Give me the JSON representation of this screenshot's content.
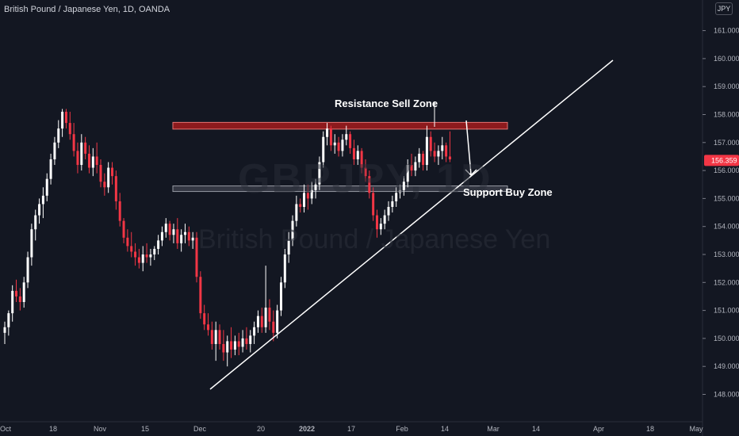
{
  "header": {
    "symbol_title": "British Pound / Japanese Yen, 1D, OANDA",
    "currency": "JPY"
  },
  "watermark": {
    "ticker": "GBPJPY, 1D",
    "name": "British Pound / Japanese Yen"
  },
  "annotations": {
    "resistance_label": "Resistance Sell Zone",
    "support_label": "Support Buy Zone"
  },
  "colors": {
    "background": "#131722",
    "up_candle": "#ffffff",
    "down_candle": "#f23645",
    "resistance_zone": "#b71c1c",
    "support_zone": "#434651",
    "trendline": "#ffffff",
    "price_tag": "#f23645"
  },
  "chart_data": {
    "type": "candlestick",
    "symbol": "GBPJPY",
    "timeframe": "1D",
    "y_axis": {
      "ticks": [
        "148.000",
        "149.000",
        "150.000",
        "151.000",
        "152.000",
        "153.000",
        "154.000",
        "155.000",
        "156.000",
        "157.000",
        "158.000",
        "159.000",
        "160.000",
        "161.000"
      ],
      "range": [
        147.4,
        161.6
      ]
    },
    "x_axis": {
      "ticks": [
        "Oct",
        "18",
        "Nov",
        "15",
        "Dec",
        "20",
        "2022",
        "17",
        "Feb",
        "14",
        "Mar",
        "14",
        "Apr",
        "18",
        "May"
      ]
    },
    "last_price": "156.359",
    "resistance_zone": [
      157.48,
      157.72
    ],
    "support_zone": [
      155.25,
      155.45
    ],
    "trendline": {
      "from": [
        "Dec",
        148.15
      ],
      "to": [
        "Apr",
        159.7
      ]
    },
    "candles": [
      [
        150.2,
        150.6,
        149.8,
        150.4
      ],
      [
        150.4,
        151.0,
        150.1,
        150.9
      ],
      [
        150.9,
        151.9,
        150.6,
        151.7
      ],
      [
        151.7,
        152.1,
        151.3,
        151.5
      ],
      [
        151.5,
        151.8,
        151.0,
        151.3
      ],
      [
        151.3,
        152.2,
        151.1,
        152.0
      ],
      [
        152.0,
        153.1,
        151.8,
        152.9
      ],
      [
        152.9,
        154.1,
        152.6,
        153.9
      ],
      [
        153.9,
        154.6,
        153.5,
        154.4
      ],
      [
        154.4,
        155.0,
        154.1,
        154.8
      ],
      [
        154.8,
        155.4,
        154.3,
        155.1
      ],
      [
        155.1,
        155.9,
        154.9,
        155.7
      ],
      [
        155.7,
        156.6,
        155.5,
        156.4
      ],
      [
        156.4,
        157.2,
        156.2,
        157.0
      ],
      [
        157.0,
        157.8,
        156.8,
        157.5
      ],
      [
        157.5,
        158.2,
        157.2,
        158.1
      ],
      [
        158.1,
        158.2,
        157.5,
        157.7
      ],
      [
        157.7,
        158.1,
        157.1,
        157.3
      ],
      [
        157.3,
        157.7,
        156.5,
        156.7
      ],
      [
        156.7,
        157.0,
        155.9,
        156.2
      ],
      [
        156.2,
        157.3,
        156.0,
        157.0
      ],
      [
        157.0,
        157.2,
        156.4,
        156.6
      ],
      [
        156.6,
        156.9,
        155.9,
        156.1
      ],
      [
        156.1,
        156.8,
        155.8,
        156.5
      ],
      [
        156.5,
        157.0,
        155.9,
        156.2
      ],
      [
        156.2,
        156.4,
        155.4,
        155.6
      ],
      [
        155.6,
        155.9,
        155.1,
        155.4
      ],
      [
        155.4,
        156.3,
        155.2,
        156.1
      ],
      [
        156.1,
        156.3,
        155.5,
        155.8
      ],
      [
        155.8,
        156.0,
        154.6,
        154.9
      ],
      [
        154.9,
        155.2,
        154.0,
        154.2
      ],
      [
        154.2,
        154.3,
        153.4,
        153.6
      ],
      [
        153.6,
        153.9,
        153.1,
        153.3
      ],
      [
        153.3,
        153.8,
        152.9,
        153.1
      ],
      [
        153.1,
        153.4,
        152.6,
        152.9
      ],
      [
        152.9,
        153.2,
        152.5,
        152.7
      ],
      [
        152.7,
        153.3,
        152.4,
        153.0
      ],
      [
        153.0,
        153.4,
        152.7,
        152.9
      ],
      [
        152.9,
        153.2,
        152.6,
        153.0
      ],
      [
        153.0,
        153.3,
        152.8,
        153.2
      ],
      [
        153.2,
        153.7,
        153.0,
        153.5
      ],
      [
        153.5,
        154.0,
        153.3,
        153.8
      ],
      [
        153.8,
        154.3,
        153.6,
        154.1
      ],
      [
        154.1,
        154.2,
        153.5,
        153.7
      ],
      [
        153.7,
        154.1,
        153.4,
        153.9
      ],
      [
        153.9,
        154.3,
        153.2,
        153.4
      ],
      [
        153.4,
        153.9,
        153.1,
        153.7
      ],
      [
        153.7,
        154.1,
        153.4,
        153.8
      ],
      [
        153.8,
        154.0,
        153.3,
        153.5
      ],
      [
        153.5,
        153.8,
        153.2,
        153.6
      ],
      [
        153.6,
        153.8,
        152.0,
        152.2
      ],
      [
        152.2,
        152.4,
        150.7,
        150.9
      ],
      [
        150.9,
        151.2,
        150.3,
        150.5
      ],
      [
        150.5,
        150.9,
        150.1,
        150.3
      ],
      [
        150.3,
        150.6,
        149.6,
        149.8
      ],
      [
        149.8,
        150.6,
        149.2,
        150.3
      ],
      [
        150.3,
        150.5,
        149.6,
        149.8
      ],
      [
        149.8,
        150.3,
        149.2,
        149.5
      ],
      [
        149.5,
        150.1,
        149.0,
        149.9
      ],
      [
        149.9,
        150.4,
        149.3,
        149.6
      ],
      [
        149.6,
        150.1,
        149.4,
        149.9
      ],
      [
        149.9,
        150.2,
        149.4,
        149.7
      ],
      [
        149.7,
        150.3,
        149.5,
        150.0
      ],
      [
        150.0,
        150.4,
        149.6,
        149.8
      ],
      [
        149.8,
        150.3,
        149.5,
        150.1
      ],
      [
        150.1,
        150.6,
        149.8,
        150.4
      ],
      [
        150.4,
        151.0,
        150.2,
        150.8
      ],
      [
        150.8,
        151.1,
        150.2,
        150.4
      ],
      [
        150.4,
        152.6,
        150.2,
        151.1
      ],
      [
        151.1,
        151.4,
        150.3,
        150.6
      ],
      [
        150.6,
        151.0,
        149.9,
        150.2
      ],
      [
        150.2,
        151.2,
        150.0,
        151.0
      ],
      [
        151.0,
        152.2,
        150.8,
        152.0
      ],
      [
        152.0,
        153.2,
        151.8,
        153.0
      ],
      [
        153.0,
        153.8,
        152.7,
        153.5
      ],
      [
        153.5,
        154.4,
        153.3,
        154.2
      ],
      [
        154.2,
        155.1,
        154.0,
        154.8
      ],
      [
        154.8,
        155.0,
        154.5,
        154.7
      ],
      [
        154.7,
        155.5,
        154.5,
        155.2
      ],
      [
        155.2,
        155.5,
        154.6,
        155.0
      ],
      [
        155.0,
        155.6,
        154.8,
        155.3
      ],
      [
        155.3,
        155.7,
        155.0,
        155.5
      ],
      [
        155.5,
        156.5,
        155.3,
        156.3
      ],
      [
        156.3,
        157.4,
        156.1,
        157.2
      ],
      [
        157.2,
        157.7,
        156.9,
        157.5
      ],
      [
        157.5,
        157.6,
        156.7,
        156.9
      ],
      [
        156.9,
        157.3,
        156.6,
        157.0
      ],
      [
        157.0,
        157.2,
        156.5,
        156.7
      ],
      [
        156.7,
        157.3,
        156.5,
        157.1
      ],
      [
        157.1,
        157.6,
        156.9,
        157.3
      ],
      [
        157.3,
        157.4,
        156.6,
        156.8
      ],
      [
        156.8,
        157.1,
        156.2,
        156.4
      ],
      [
        156.4,
        156.9,
        156.2,
        156.7
      ],
      [
        156.7,
        156.8,
        155.9,
        156.1
      ],
      [
        156.1,
        156.4,
        155.6,
        155.8
      ],
      [
        155.8,
        156.0,
        155.0,
        155.2
      ],
      [
        155.2,
        155.4,
        154.2,
        154.4
      ],
      [
        154.4,
        154.6,
        153.6,
        153.9
      ],
      [
        153.9,
        154.3,
        153.7,
        154.1
      ],
      [
        154.1,
        154.6,
        153.9,
        154.4
      ],
      [
        154.4,
        154.9,
        154.2,
        154.7
      ],
      [
        154.7,
        155.1,
        154.5,
        154.9
      ],
      [
        154.9,
        155.4,
        154.7,
        155.2
      ],
      [
        155.2,
        155.5,
        155.0,
        155.3
      ],
      [
        155.3,
        155.8,
        155.1,
        155.6
      ],
      [
        155.6,
        156.4,
        155.4,
        156.2
      ],
      [
        156.2,
        156.6,
        155.8,
        156.0
      ],
      [
        156.0,
        156.5,
        155.8,
        156.3
      ],
      [
        156.3,
        156.8,
        156.1,
        156.6
      ],
      [
        156.6,
        156.7,
        156.0,
        156.2
      ],
      [
        156.2,
        157.6,
        156.0,
        157.2
      ],
      [
        157.2,
        157.4,
        156.5,
        156.7
      ],
      [
        156.7,
        157.0,
        156.3,
        156.5
      ],
      [
        156.5,
        156.9,
        156.2,
        156.7
      ],
      [
        156.7,
        157.2,
        156.4,
        156.9
      ],
      [
        156.9,
        157.0,
        156.3,
        156.5
      ],
      [
        156.5,
        157.4,
        156.3,
        156.4
      ]
    ]
  }
}
